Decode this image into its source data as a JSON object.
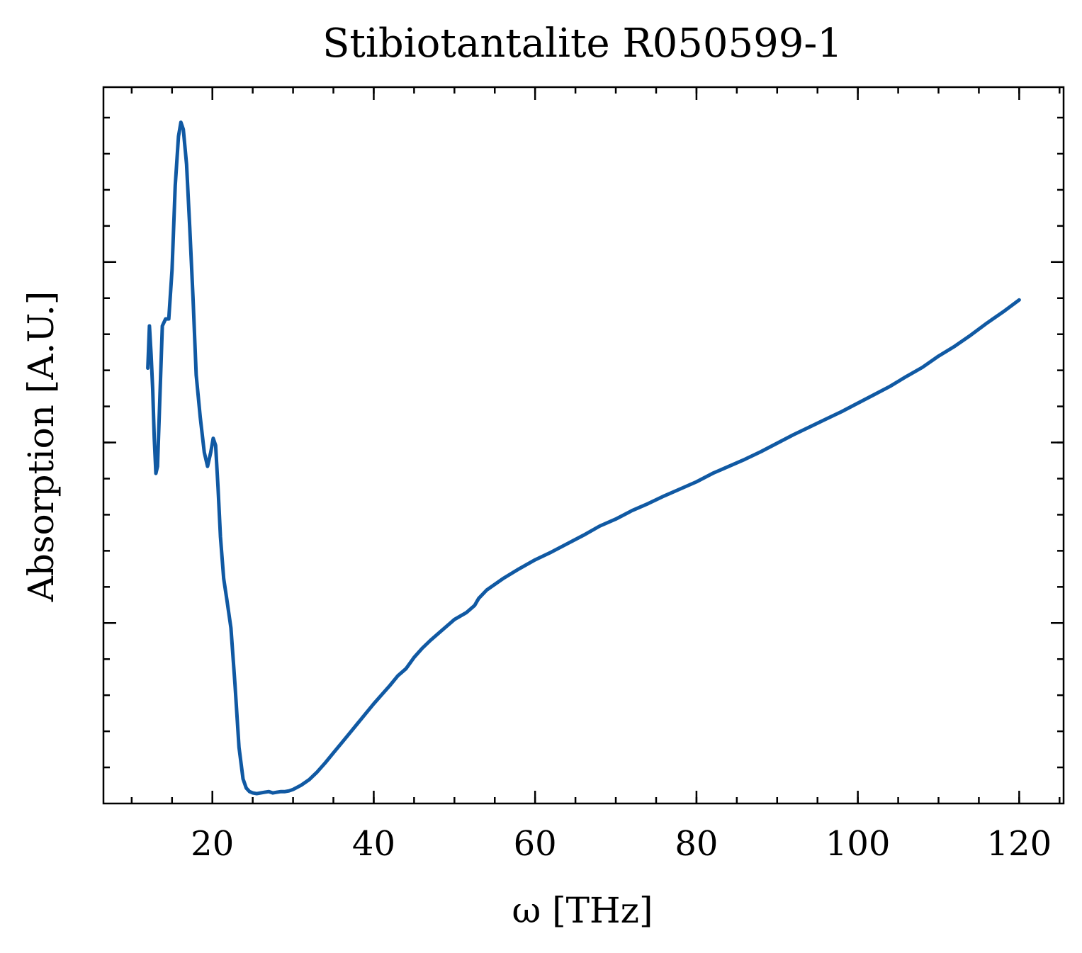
{
  "chart_data": {
    "type": "line",
    "title": "Stibiotantalite R050599-1",
    "xlabel": "ω [THz]",
    "ylabel": "Absorption [A.U.]",
    "xlim": [
      6.5,
      125.5
    ],
    "ylim": [
      -0.02,
      1.0
    ],
    "x_ticks": [
      20,
      40,
      60,
      80,
      100,
      120
    ],
    "x_minor_step": 5,
    "y_major_ticks": [
      0.237,
      0.494,
      0.751
    ],
    "y_minor_step": 0.0514,
    "y_tick_labels_shown": false,
    "grid": false,
    "line_color": "#1059a3",
    "series": [
      {
        "x": [
          12.0,
          12.2,
          12.4,
          12.6,
          12.8,
          13.0,
          13.2,
          13.5,
          13.8,
          14.2,
          14.6,
          15.0,
          15.4,
          15.8,
          16.1,
          16.4,
          16.8,
          17.2,
          17.6,
          18.0,
          18.5,
          19.0,
          19.4,
          19.8,
          20.1,
          20.4,
          20.7,
          21.0,
          21.4,
          21.8,
          22.3,
          22.8,
          23.3,
          23.8,
          24.2,
          24.6,
          25.0,
          25.5,
          26.0,
          26.5,
          27.0,
          27.5,
          28.0,
          28.5,
          29.0,
          29.5,
          30.0,
          31.0,
          32.0,
          33.0,
          34.0,
          35.0,
          36.0,
          37.0,
          38.0,
          39.0,
          40.0,
          41.0,
          42.0,
          43.0,
          44.0,
          45.0,
          46.0,
          47.0,
          48.0,
          50.0,
          51.5,
          52.5,
          53.0,
          54.0,
          56.0,
          58.0,
          60.0,
          62.0,
          64.0,
          66.0,
          68.0,
          70.0,
          72.0,
          74.0,
          76.0,
          78.0,
          80.0,
          82.0,
          84.0,
          86.0,
          88.0,
          90.0,
          92.0,
          94.0,
          96.0,
          98.0,
          100.0,
          102.0,
          104.0,
          106.0,
          108.0,
          110.0,
          112.0,
          114.0,
          116.0,
          118.0,
          120.0
        ],
        "y": [
          0.6,
          0.66,
          0.62,
          0.57,
          0.5,
          0.45,
          0.46,
          0.56,
          0.66,
          0.67,
          0.67,
          0.74,
          0.86,
          0.93,
          0.95,
          0.94,
          0.89,
          0.8,
          0.7,
          0.59,
          0.53,
          0.48,
          0.46,
          0.48,
          0.5,
          0.49,
          0.43,
          0.36,
          0.3,
          0.27,
          0.23,
          0.15,
          0.06,
          0.015,
          0.002,
          -0.003,
          -0.005,
          -0.006,
          -0.005,
          -0.004,
          -0.003,
          -0.005,
          -0.004,
          -0.003,
          -0.003,
          -0.002,
          0.0,
          0.006,
          0.014,
          0.025,
          0.038,
          0.052,
          0.066,
          0.08,
          0.094,
          0.108,
          0.122,
          0.135,
          0.148,
          0.162,
          0.172,
          0.188,
          0.201,
          0.212,
          0.222,
          0.242,
          0.252,
          0.262,
          0.272,
          0.284,
          0.3,
          0.314,
          0.327,
          0.338,
          0.35,
          0.362,
          0.375,
          0.385,
          0.397,
          0.407,
          0.418,
          0.428,
          0.438,
          0.45,
          0.46,
          0.47,
          0.481,
          0.493,
          0.505,
          0.516,
          0.527,
          0.538,
          0.55,
          0.562,
          0.574,
          0.588,
          0.601,
          0.617,
          0.631,
          0.647,
          0.664,
          0.68,
          0.697
        ]
      }
    ]
  }
}
